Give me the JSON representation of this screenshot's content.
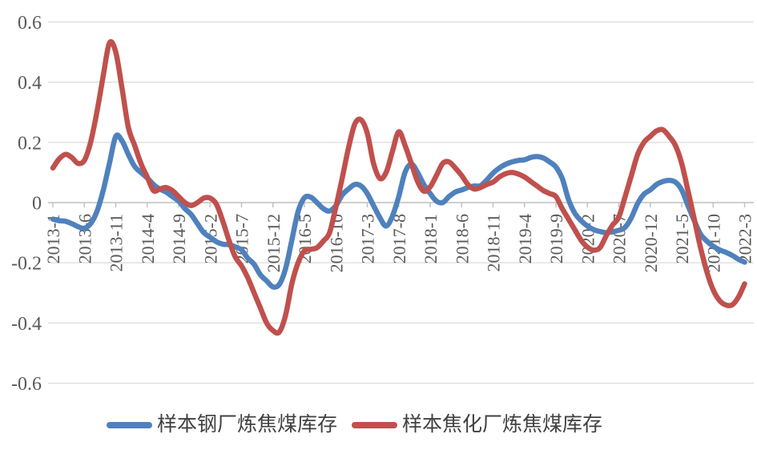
{
  "chart_data": {
    "type": "line",
    "title": "",
    "x": [
      "2013-1",
      "2013-2",
      "2013-3",
      "2013-4",
      "2013-5",
      "2013-6",
      "2013-7",
      "2013-8",
      "2013-9",
      "2013-10",
      "2013-11",
      "2013-12",
      "2014-1",
      "2014-2",
      "2014-3",
      "2014-4",
      "2014-5",
      "2014-6",
      "2014-7",
      "2014-8",
      "2014-9",
      "2014-10",
      "2014-11",
      "2014-12",
      "2015-1",
      "2015-2",
      "2015-3",
      "2015-4",
      "2015-5",
      "2015-6",
      "2015-7",
      "2015-8",
      "2015-9",
      "2015-10",
      "2015-11",
      "2015-12",
      "2016-1",
      "2016-2",
      "2016-3",
      "2016-4",
      "2016-5",
      "2016-6",
      "2016-7",
      "2016-8",
      "2016-9",
      "2016-10",
      "2016-11",
      "2016-12",
      "2017-1",
      "2017-2",
      "2017-3",
      "2017-4",
      "2017-5",
      "2017-6",
      "2017-7",
      "2017-8",
      "2017-9",
      "2017-10",
      "2017-11",
      "2017-12",
      "2018-1",
      "2018-2",
      "2018-3",
      "2018-4",
      "2018-5",
      "2018-6",
      "2018-7",
      "2018-8",
      "2018-9",
      "2018-10",
      "2018-11",
      "2018-12",
      "2019-1",
      "2019-2",
      "2019-3",
      "2019-4",
      "2019-5",
      "2019-6",
      "2019-7",
      "2019-8",
      "2019-9",
      "2019-10",
      "2019-11",
      "2019-12",
      "2020-1",
      "2020-2",
      "2020-3",
      "2020-4",
      "2020-5",
      "2020-6",
      "2020-7",
      "2020-8",
      "2020-9",
      "2020-10",
      "2020-11",
      "2020-12",
      "2021-1",
      "2021-2",
      "2021-3",
      "2021-4",
      "2021-5",
      "2021-6",
      "2021-7",
      "2021-8",
      "2021-9",
      "2021-10",
      "2021-11",
      "2021-12",
      "2022-1",
      "2022-2",
      "2022-3"
    ],
    "x_tick_every": 5,
    "x_tick_labels": [
      "2013-1",
      "2013-6",
      "2013-11",
      "2014-4",
      "2014-9",
      "2015-2",
      "2015-7",
      "2015-12",
      "2016-5",
      "2016-10",
      "2017-3",
      "2017-8",
      "2018-1",
      "2018-6",
      "2018-11",
      "2019-4",
      "2019-9",
      "2020-2",
      "2020-7",
      "2020-12",
      "2021-5",
      "2021-10",
      "2022-3"
    ],
    "series": [
      {
        "name": "样本钢厂炼焦煤库存",
        "color": "#4F81BD",
        "values": [
          -0.055,
          -0.06,
          -0.062,
          -0.07,
          -0.08,
          -0.085,
          -0.07,
          -0.03,
          0.04,
          0.13,
          0.22,
          0.205,
          0.16,
          0.12,
          0.1,
          0.082,
          0.06,
          0.045,
          0.035,
          0.02,
          0.005,
          -0.02,
          -0.04,
          -0.07,
          -0.1,
          -0.115,
          -0.13,
          -0.138,
          -0.14,
          -0.147,
          -0.157,
          -0.185,
          -0.205,
          -0.24,
          -0.26,
          -0.28,
          -0.272,
          -0.22,
          -0.125,
          -0.03,
          0.016,
          0.018,
          0.0,
          -0.02,
          -0.028,
          -0.01,
          0.025,
          0.045,
          0.06,
          0.055,
          0.03,
          -0.01,
          -0.05,
          -0.078,
          -0.045,
          0.02,
          0.1,
          0.128,
          0.1,
          0.06,
          0.03,
          0.005,
          0.0,
          0.02,
          0.035,
          0.042,
          0.05,
          0.055,
          0.056,
          0.075,
          0.098,
          0.115,
          0.127,
          0.135,
          0.14,
          0.142,
          0.15,
          0.153,
          0.148,
          0.135,
          0.118,
          0.08,
          0.01,
          -0.035,
          -0.06,
          -0.078,
          -0.09,
          -0.096,
          -0.1,
          -0.097,
          -0.092,
          -0.082,
          -0.05,
          -0.003,
          0.028,
          0.042,
          0.06,
          0.07,
          0.074,
          0.068,
          0.042,
          -0.01,
          -0.06,
          -0.105,
          -0.128,
          -0.145,
          -0.157,
          -0.165,
          -0.175,
          -0.188,
          -0.198
        ]
      },
      {
        "name": "样本焦化厂炼焦煤库存",
        "color": "#C0504D",
        "values": [
          0.115,
          0.145,
          0.16,
          0.15,
          0.13,
          0.14,
          0.2,
          0.3,
          0.42,
          0.53,
          0.5,
          0.38,
          0.25,
          0.19,
          0.13,
          0.085,
          0.04,
          0.045,
          0.05,
          0.04,
          0.02,
          0.0,
          -0.01,
          0.0,
          0.015,
          0.015,
          -0.005,
          -0.06,
          -0.125,
          -0.18,
          -0.21,
          -0.25,
          -0.3,
          -0.35,
          -0.4,
          -0.425,
          -0.43,
          -0.375,
          -0.27,
          -0.2,
          -0.16,
          -0.155,
          -0.15,
          -0.128,
          -0.1,
          -0.015,
          0.08,
          0.18,
          0.26,
          0.275,
          0.23,
          0.13,
          0.08,
          0.1,
          0.17,
          0.235,
          0.19,
          0.13,
          0.07,
          0.038,
          0.052,
          0.09,
          0.13,
          0.135,
          0.115,
          0.09,
          0.06,
          0.045,
          0.05,
          0.06,
          0.068,
          0.085,
          0.096,
          0.1,
          0.095,
          0.085,
          0.07,
          0.055,
          0.04,
          0.03,
          0.02,
          -0.02,
          -0.055,
          -0.09,
          -0.125,
          -0.148,
          -0.158,
          -0.15,
          -0.11,
          -0.075,
          -0.048,
          0.02,
          0.09,
          0.16,
          0.2,
          0.22,
          0.238,
          0.242,
          0.22,
          0.19,
          0.13,
          0.04,
          -0.055,
          -0.15,
          -0.23,
          -0.29,
          -0.325,
          -0.34,
          -0.34,
          -0.315,
          -0.27
        ]
      }
    ],
    "ylim": [
      -0.6,
      0.6
    ],
    "y_ticks": [
      0.6,
      0.4,
      0.2,
      0,
      -0.2,
      -0.4,
      -0.6
    ],
    "y_tick_labels": [
      "0.6",
      "0.4",
      "0.2",
      "0",
      "-0.2",
      "-0.4",
      "-0.6"
    ],
    "grid": true,
    "legend_position": "bottom",
    "colors": {
      "background": "#FFFFFF",
      "gridline": "#D9D9D9",
      "axis_line": "#BFBFBF",
      "axis_label": "#595959",
      "legend_text": "#404040",
      "series_blue": "#4F81BD",
      "series_red": "#C0504D"
    },
    "xlabel": "",
    "ylabel": ""
  }
}
